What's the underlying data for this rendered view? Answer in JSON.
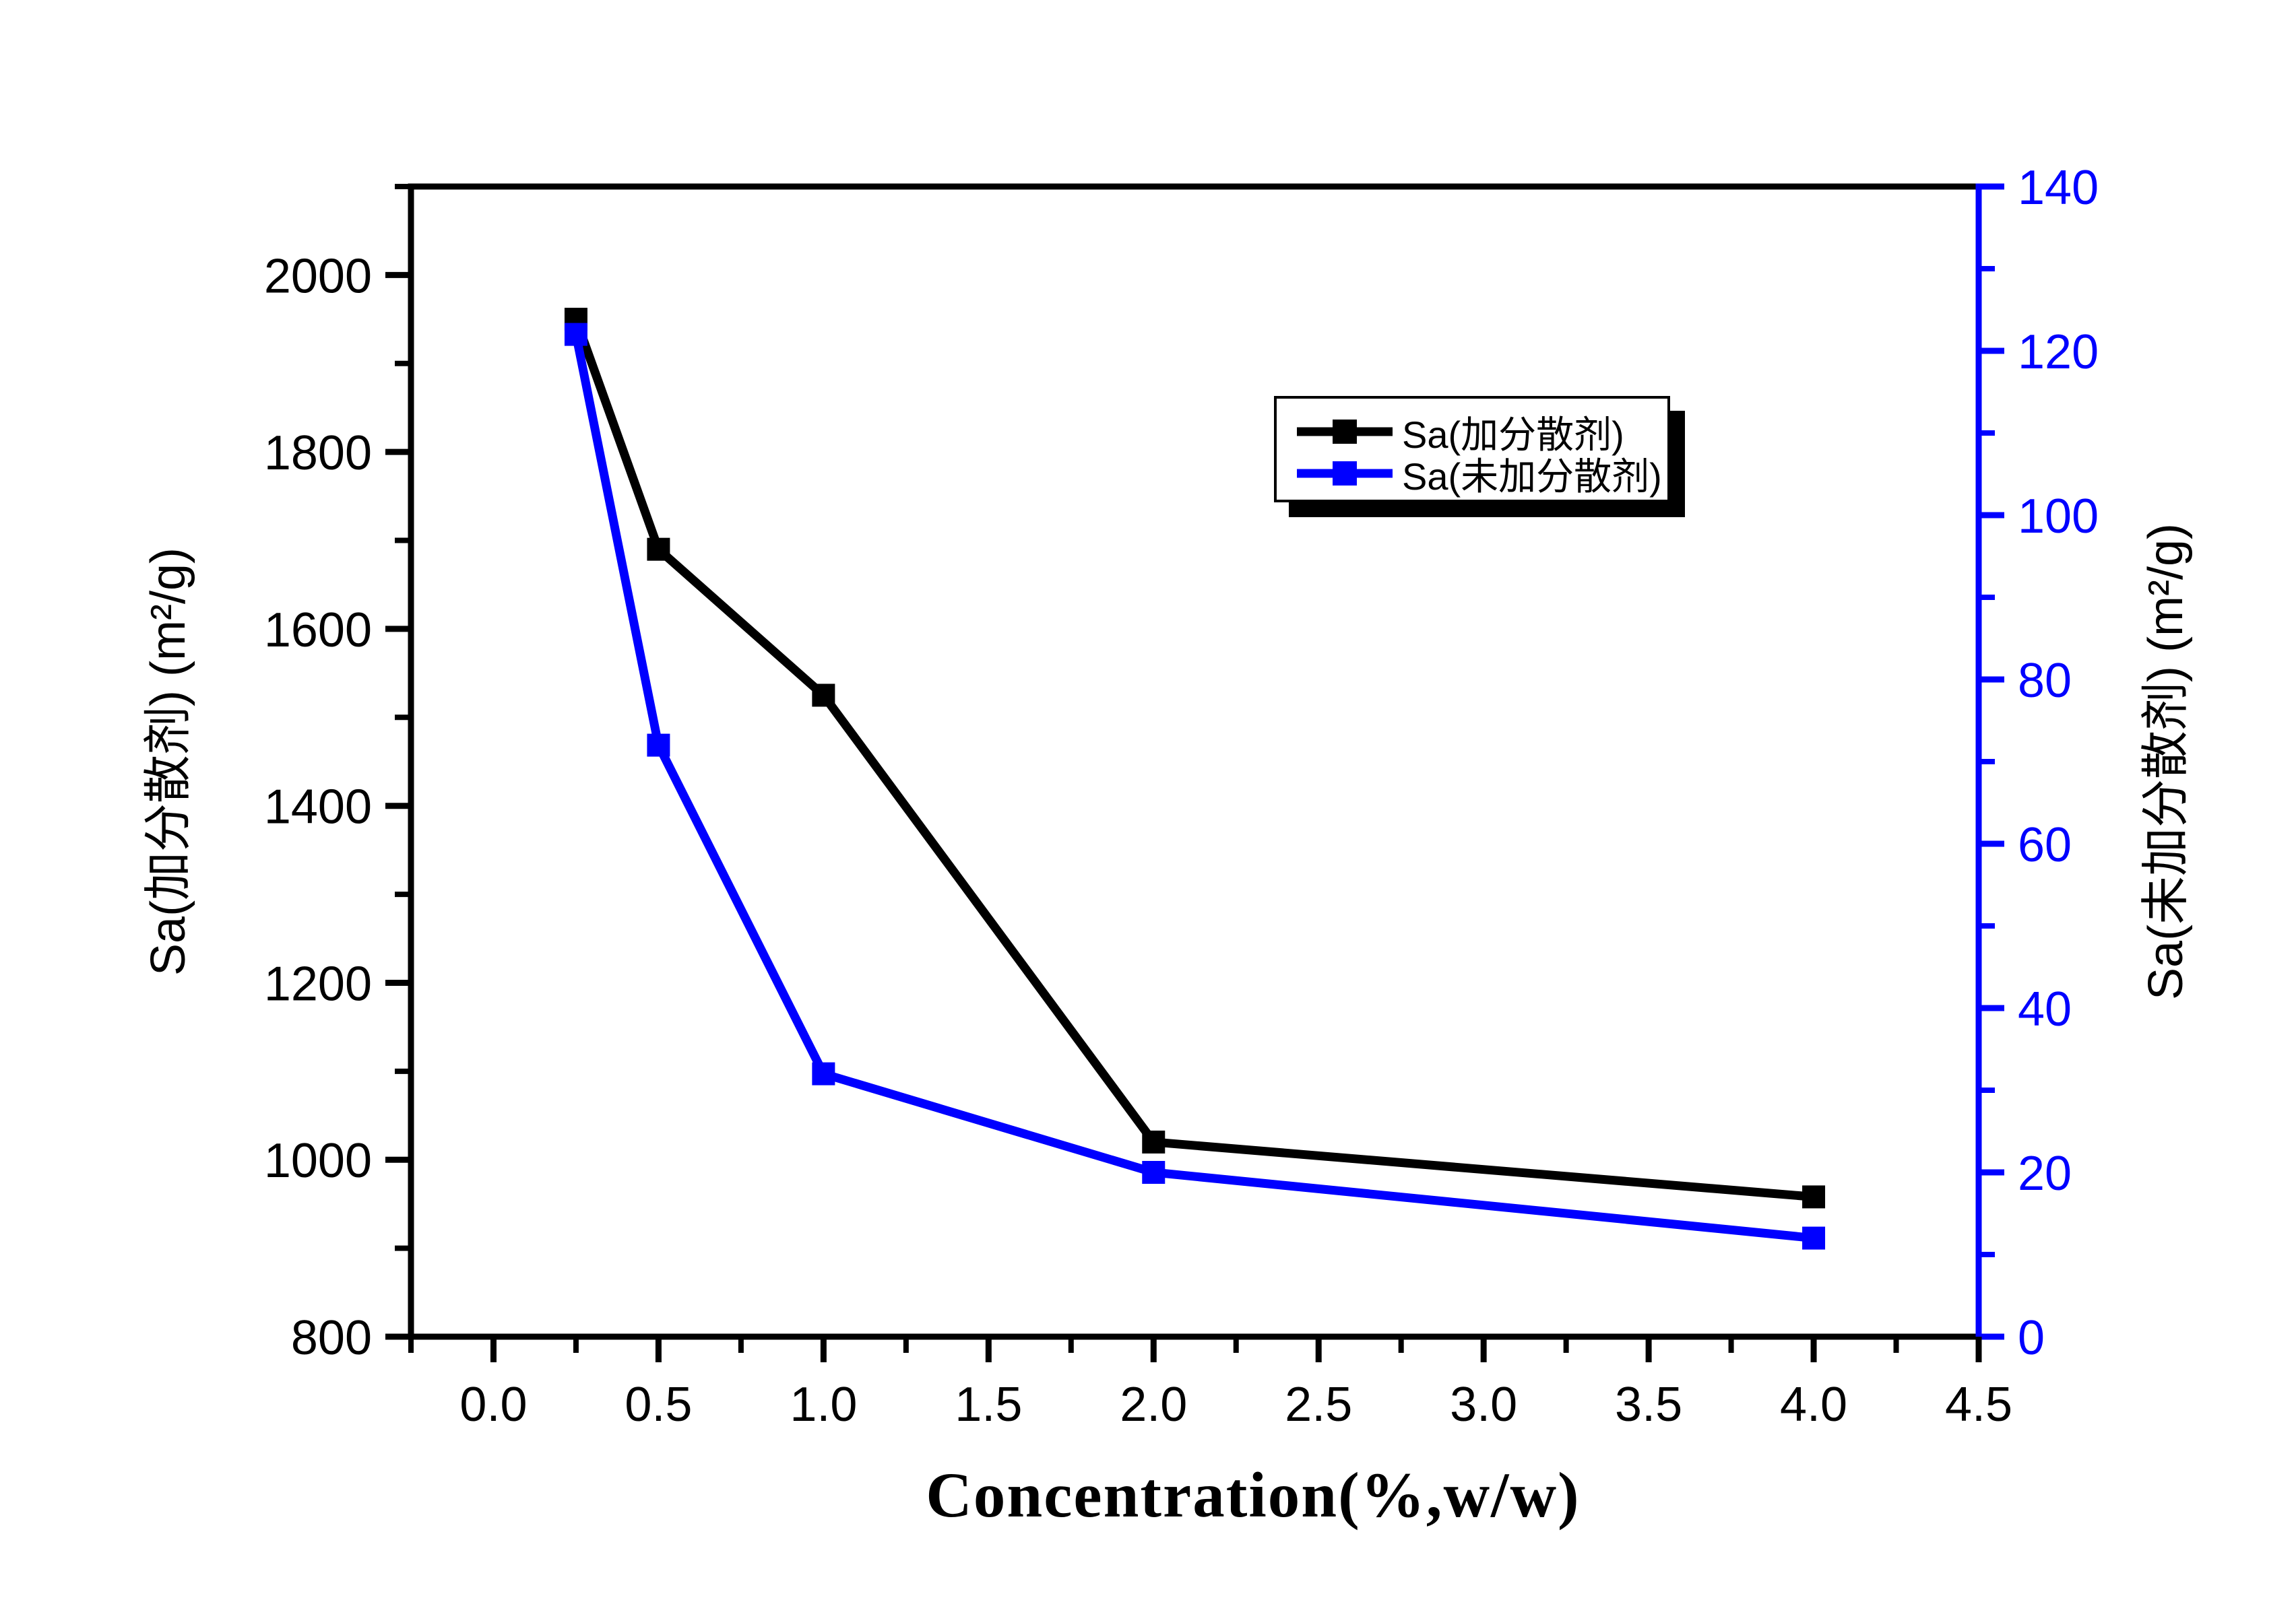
{
  "chart_data": {
    "type": "line",
    "title": "",
    "xlabel": "Concentration(%,w/w)",
    "ylabel_left": "Sa(加分散剂) (m²/g)",
    "ylabel_right": "Sa(未加分散剂) (m²/g)",
    "background": "#ffffff",
    "grid": false,
    "x_axis": {
      "min": -0.25,
      "max": 4.5,
      "color": "#000000",
      "major_ticks": [
        0.0,
        0.5,
        1.0,
        1.5,
        2.0,
        2.5,
        3.0,
        3.5,
        4.0,
        4.5
      ],
      "major_tick_labels": [
        "0.0",
        "0.5",
        "1.0",
        "1.5",
        "2.0",
        "2.5",
        "3.0",
        "3.5",
        "4.0",
        "4.5"
      ],
      "minor_ticks": [
        -0.25,
        0.25,
        0.75,
        1.25,
        1.75,
        2.25,
        2.75,
        3.25,
        3.75,
        4.25
      ]
    },
    "y_axis_left": {
      "min": 800,
      "max": 2100,
      "color": "#000000",
      "major_ticks": [
        800,
        1000,
        1200,
        1400,
        1600,
        1800,
        2000
      ],
      "major_tick_labels": [
        "800",
        "1000",
        "1200",
        "1400",
        "1600",
        "1800",
        "2000"
      ],
      "minor_ticks": [
        900,
        1100,
        1300,
        1500,
        1700,
        1900,
        2100
      ]
    },
    "y_axis_right": {
      "min": 0,
      "max": 140,
      "color": "#0000ff",
      "major_ticks": [
        0,
        20,
        40,
        60,
        80,
        100,
        120,
        140
      ],
      "major_tick_labels": [
        "0",
        "20",
        "40",
        "60",
        "80",
        "100",
        "120",
        "140"
      ],
      "minor_ticks": [
        10,
        30,
        50,
        70,
        90,
        110,
        130
      ]
    },
    "series": [
      {
        "name": "Sa(加分散剂)",
        "axis": "left",
        "color": "#000000",
        "marker": "square",
        "x": [
          0.25,
          0.5,
          1.0,
          2.0,
          4.0
        ],
        "y": [
          1950,
          1690,
          1525,
          1020,
          958
        ]
      },
      {
        "name": "Sa(未加分散剂)",
        "axis": "right",
        "color": "#0000ff",
        "marker": "square",
        "x": [
          0.25,
          0.5,
          1.0,
          2.0,
          4.0
        ],
        "y": [
          122,
          72,
          32,
          20,
          12
        ]
      }
    ],
    "legend": {
      "position": "inside-top-right",
      "entries": [
        "Sa(加分散剂)",
        "Sa(未加分散剂)"
      ]
    }
  }
}
